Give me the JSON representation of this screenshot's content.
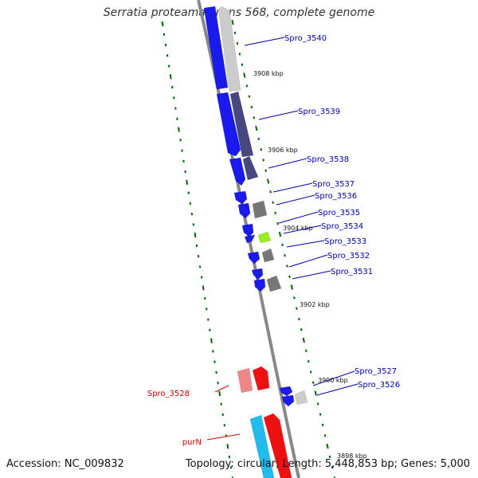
{
  "title": "Serratia proteamaculans 568, complete genome",
  "footer": {
    "accession": "Accession: NC_009832",
    "summary": "Topology: circular; Length: 5,448,853 bp; Genes: 5,000"
  },
  "colors": {
    "forward_cds": "#1a1aee",
    "reverse_cds_gray": "#777777",
    "reverse_cds_light": "#cccccc",
    "reverse_cds_dark": "#484880",
    "lime": "#99ee22",
    "rna": "#ee1111",
    "rna_light": "#ee8888",
    "cyan": "#22bbee",
    "label_blue": "#0000aa",
    "label_red": "#cc0000",
    "tick_green": "#006600",
    "backbone": "#888888"
  },
  "ticks": [
    "3908 kbp",
    "3906 kbp",
    "3904 kbp",
    "3902 kbp",
    "3900 kbp",
    "3898 kbp"
  ],
  "genes": [
    {
      "name": "Spro_3540",
      "color": "label_blue"
    },
    {
      "name": "Spro_3539",
      "color": "label_blue"
    },
    {
      "name": "Spro_3538",
      "color": "label_blue"
    },
    {
      "name": "Spro_3537",
      "color": "label_blue"
    },
    {
      "name": "Spro_3536",
      "color": "label_blue"
    },
    {
      "name": "Spro_3535",
      "color": "label_blue"
    },
    {
      "name": "Spro_3534",
      "color": "label_blue"
    },
    {
      "name": "Spro_3533",
      "color": "label_blue"
    },
    {
      "name": "Spro_3532",
      "color": "label_blue"
    },
    {
      "name": "Spro_3531",
      "color": "label_blue"
    },
    {
      "name": "Spro_3527",
      "color": "label_blue"
    },
    {
      "name": "Spro_3526",
      "color": "label_blue"
    },
    {
      "name": "Spro_3528",
      "color": "label_red"
    },
    {
      "name": "purN",
      "color": "label_red"
    }
  ]
}
